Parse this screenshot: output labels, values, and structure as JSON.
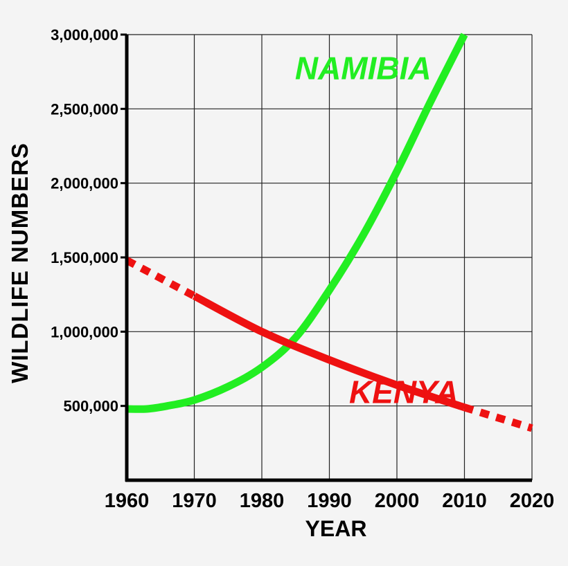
{
  "chart_data": {
    "type": "line",
    "title": "",
    "xlabel": "YEAR",
    "ylabel": "WILDLIFE NUMBERS",
    "xlim": [
      1960,
      2020
    ],
    "ylim": [
      0,
      3000000
    ],
    "x_ticks": [
      1960,
      1970,
      1980,
      1990,
      2000,
      2010,
      2020
    ],
    "x_tick_labels": [
      "1960",
      "1970",
      "1980",
      "1990",
      "2000",
      "2010",
      "2020"
    ],
    "y_ticks": [
      500000,
      1000000,
      1500000,
      2000000,
      2500000,
      3000000
    ],
    "y_tick_labels": [
      "500,000",
      "1,000,000",
      "1,500,000",
      "2,000,000",
      "2,500,000",
      "3,000,000"
    ],
    "grid": true,
    "series": [
      {
        "name": "NAMIBIA",
        "color": "#22ee22",
        "points": [
          [
            1960,
            480000
          ],
          [
            1963,
            480000
          ],
          [
            1966,
            500000
          ],
          [
            1970,
            540000
          ],
          [
            1975,
            630000
          ],
          [
            1980,
            760000
          ],
          [
            1985,
            960000
          ],
          [
            1990,
            1280000
          ],
          [
            1995,
            1650000
          ],
          [
            2000,
            2080000
          ],
          [
            2005,
            2550000
          ],
          [
            2010,
            3000000
          ]
        ],
        "segments": [
          {
            "range": [
              1960,
              2010
            ],
            "style": "solid"
          }
        ]
      },
      {
        "name": "KENYA",
        "color": "#ee1111",
        "points": [
          [
            1960,
            1480000
          ],
          [
            1970,
            1240000
          ],
          [
            1980,
            1000000
          ],
          [
            1990,
            810000
          ],
          [
            2000,
            640000
          ],
          [
            2010,
            490000
          ],
          [
            2020,
            350000
          ]
        ],
        "segments": [
          {
            "range": [
              1960,
              1970
            ],
            "style": "dashed"
          },
          {
            "range": [
              1970,
              2010
            ],
            "style": "solid"
          },
          {
            "range": [
              2010,
              2020
            ],
            "style": "dashed"
          }
        ]
      }
    ],
    "annotations": [
      {
        "text": "NAMIBIA",
        "x": 1995,
        "y": 2700000,
        "color": "#22ee22"
      },
      {
        "text": "KENYA",
        "x": 2001,
        "y": 520000,
        "color": "#ee1111"
      }
    ]
  }
}
